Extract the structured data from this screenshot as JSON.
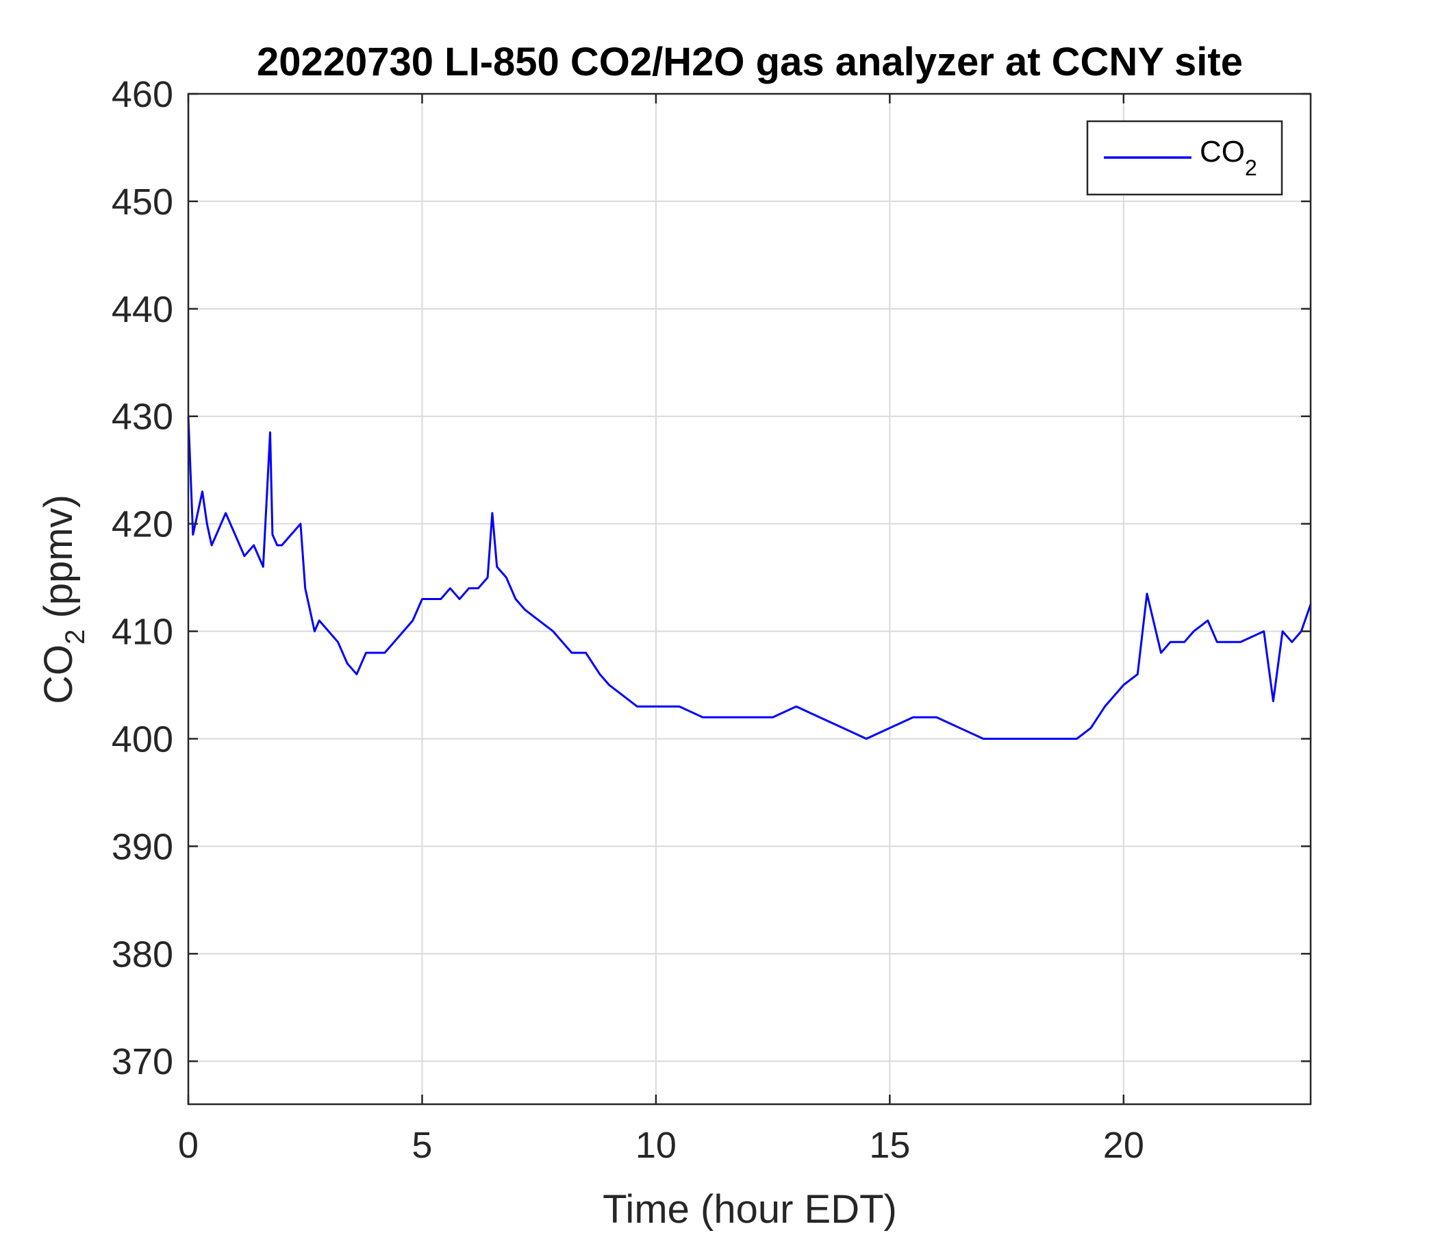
{
  "chart_data": {
    "type": "line",
    "title": "20220730 LI-850 CO2/H2O gas analyzer at CCNY site",
    "xlabel": "Time (hour EDT)",
    "ylabel": {
      "main": "CO",
      "sub": "2",
      "unit": " (ppmv)"
    },
    "xlim": [
      0,
      24
    ],
    "ylim": [
      366,
      460
    ],
    "xticks": [
      0,
      5,
      10,
      15,
      20
    ],
    "yticks": [
      370,
      380,
      390,
      400,
      410,
      420,
      430,
      440,
      450,
      460
    ],
    "grid": true,
    "legend_position": "top-right",
    "series": [
      {
        "name": {
          "main": "CO",
          "sub": "2"
        },
        "color": "#0000ff",
        "x": [
          0,
          0.1,
          0.2,
          0.3,
          0.4,
          0.5,
          0.6,
          0.8,
          1.0,
          1.2,
          1.4,
          1.6,
          1.75,
          1.8,
          1.9,
          2.0,
          2.2,
          2.4,
          2.5,
          2.6,
          2.7,
          2.8,
          3.0,
          3.2,
          3.4,
          3.6,
          3.8,
          4.0,
          4.2,
          4.4,
          4.6,
          4.8,
          5.0,
          5.2,
          5.4,
          5.6,
          5.8,
          6.0,
          6.2,
          6.4,
          6.5,
          6.6,
          6.8,
          7.0,
          7.2,
          7.5,
          7.8,
          8.0,
          8.2,
          8.5,
          8.8,
          9.0,
          9.3,
          9.6,
          10.0,
          10.5,
          11.0,
          11.5,
          12.0,
          12.5,
          13.0,
          13.5,
          14.0,
          14.5,
          15.0,
          15.5,
          16.0,
          16.5,
          17.0,
          17.5,
          18.0,
          18.5,
          19.0,
          19.3,
          19.6,
          20.0,
          20.3,
          20.5,
          20.8,
          21.0,
          21.3,
          21.5,
          21.8,
          22.0,
          22.5,
          23.0,
          23.2,
          23.4,
          23.6,
          23.8,
          24.0
        ],
        "y": [
          430,
          419,
          421,
          423,
          420,
          418,
          419,
          421,
          419,
          417,
          418,
          416,
          428.5,
          419,
          418,
          418,
          419,
          420,
          414,
          412,
          410,
          411,
          410,
          409,
          407,
          406,
          408,
          408,
          408,
          409,
          410,
          411,
          413,
          413,
          413,
          414,
          413,
          414,
          414,
          415,
          421,
          416,
          415,
          413,
          412,
          411,
          410,
          409,
          408,
          408,
          406,
          405,
          404,
          403,
          403,
          403,
          402,
          402,
          402,
          402,
          403,
          402,
          401,
          400,
          401,
          402,
          402,
          401,
          400,
          400,
          400,
          400,
          400,
          401,
          403,
          405,
          406,
          413.5,
          408,
          409,
          409,
          410,
          411,
          409,
          409,
          410,
          403.5,
          410,
          409,
          410,
          412.5
        ]
      }
    ]
  }
}
